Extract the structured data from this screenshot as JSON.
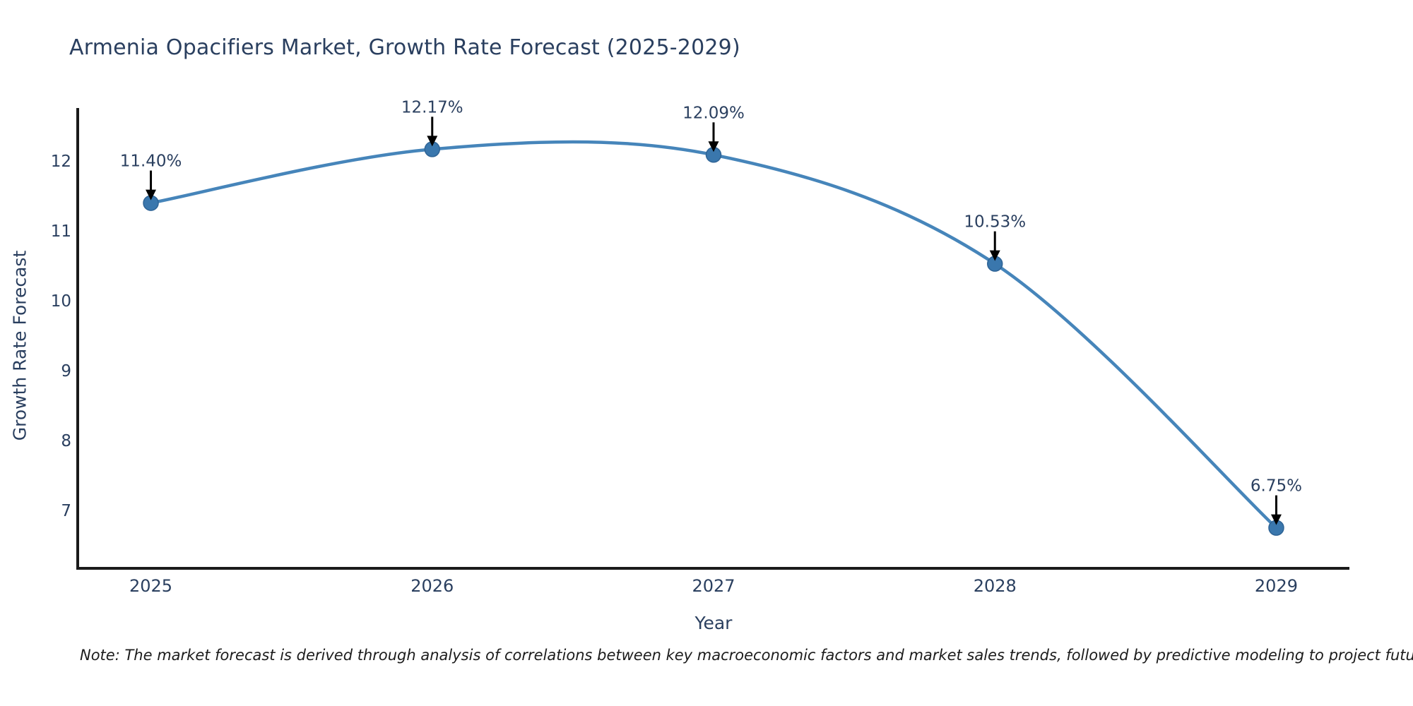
{
  "page": {
    "background": "#ffffff"
  },
  "chart_data": {
    "type": "line",
    "title": "Armenia Opacifiers Market, Growth Rate Forecast (2025-2029)",
    "xlabel": "Year",
    "ylabel": "Growth Rate Forecast",
    "x": [
      2025,
      2026,
      2027,
      2028,
      2029
    ],
    "series": [
      {
        "name": "Growth Rate Forecast",
        "values": [
          11.4,
          12.17,
          12.09,
          10.53,
          6.75
        ],
        "point_labels": [
          "11.40%",
          "12.17%",
          "12.09%",
          "10.53%",
          "6.75%"
        ],
        "line_shape": "spline"
      }
    ],
    "x_ticks": [
      "2025",
      "2026",
      "2027",
      "2028",
      "2029"
    ],
    "y_ticks": [
      7,
      8,
      9,
      10,
      11,
      12
    ],
    "xlim": [
      2024.74,
      2029.26
    ],
    "ylim": [
      6.17,
      12.74
    ],
    "grid": false,
    "legend_position": "none",
    "colors": {
      "line": "#4685ba",
      "marker_fill": "#3a77ad",
      "marker_edge": "#2f6496",
      "axis_line": "#1a1a1a",
      "tick_text": "#2a3f5f",
      "annotation_text": "#2a3f5f",
      "annotation_arrow": "#000000",
      "title_text": "#2a3f5f"
    }
  },
  "note": {
    "text": "Note: The market forecast is derived through analysis of correlations between key macroeconomic factors and market sales trends, followed by predictive modeling to project future sales."
  }
}
